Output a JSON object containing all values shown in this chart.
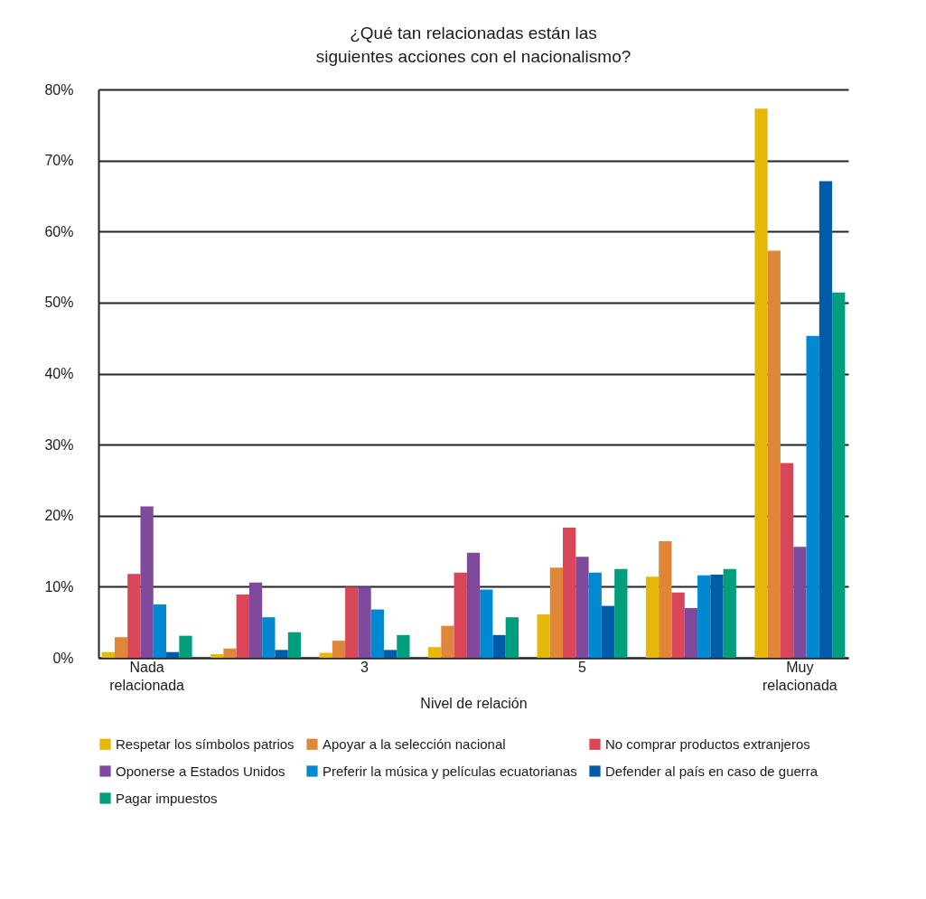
{
  "chart_data": {
    "type": "bar",
    "title": "¿Qué tan relacionadas están las siguientes acciones con el nacionalismo?",
    "xlabel": "Nivel de relación",
    "categories": [
      "Nada relacionada",
      null,
      "3",
      null,
      "5",
      null,
      "Muy relacionada"
    ],
    "series": [
      {
        "name": "Respetar los símbolos patrios",
        "color": "#e6b80a",
        "values": [
          0.8,
          0.5,
          0.7,
          1.5,
          6.1,
          11.4,
          77.3
        ]
      },
      {
        "name": "Apoyar a la selección nacional",
        "color": "#e08638",
        "values": [
          2.9,
          1.3,
          2.4,
          4.5,
          12.7,
          16.4,
          57.3
        ]
      },
      {
        "name": "No comprar productos extranjeros",
        "color": "#d94658",
        "values": [
          11.8,
          8.9,
          10.0,
          12.0,
          18.3,
          9.2,
          27.4
        ]
      },
      {
        "name": "Oponerse a Estados Unidos",
        "color": "#7f4a9b",
        "values": [
          21.3,
          10.6,
          10.0,
          14.8,
          14.2,
          7.0,
          15.6
        ]
      },
      {
        "name": "Preferir la música y películas ecuatorianas",
        "color": "#0089d1",
        "values": [
          7.5,
          5.7,
          6.8,
          9.6,
          12.0,
          11.6,
          45.3
        ]
      },
      {
        "name": "Defender al país en caso de guerra",
        "color": "#005ba9",
        "values": [
          0.8,
          1.1,
          1.1,
          3.2,
          7.3,
          11.7,
          67.1
        ]
      },
      {
        "name": "Pagar impuestos",
        "color": "#009e7a",
        "values": [
          3.1,
          3.6,
          3.2,
          5.7,
          12.5,
          12.5,
          51.4
        ]
      }
    ],
    "ylim": [
      0,
      80
    ],
    "yticks": [
      {
        "value": 0,
        "label": "0%"
      },
      {
        "value": 10,
        "label": "10%"
      },
      {
        "value": 20,
        "label": "20%"
      },
      {
        "value": 30,
        "label": "30%"
      },
      {
        "value": 40,
        "label": "40%"
      },
      {
        "value": 50,
        "label": "50%"
      },
      {
        "value": 60,
        "label": "60%"
      },
      {
        "value": 70,
        "label": "70%"
      },
      {
        "value": 80,
        "label": "80%"
      }
    ],
    "grid": "y",
    "legend": "bottom"
  }
}
